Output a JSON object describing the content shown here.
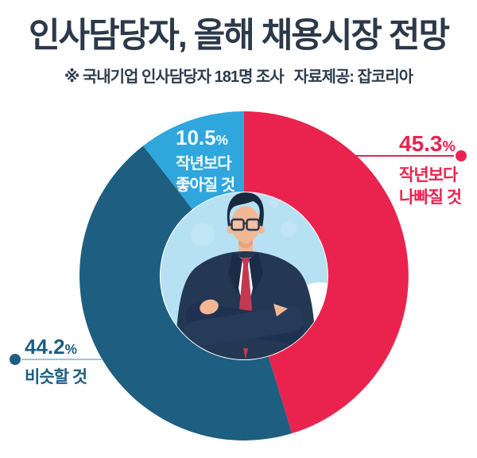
{
  "header": {
    "title": "인사담당자, 올해 채용시장 전망",
    "subtitle_note": "※ 국내기업 인사담당자 181명 조사",
    "subtitle_source": "자료제공: 잡코리아"
  },
  "colors": {
    "title_text": "#2b3949",
    "worse_red": "#ea234e",
    "similar_teal": "#1e5e80",
    "better_blue": "#2fa7dd",
    "leader_line_left": "#a3c2d3",
    "leader_line_right": "#ea234e",
    "center_bg": "#b6e1f2",
    "cloud_white": "#ffffff",
    "on_slice_text": "#f4fbff"
  },
  "chart_data": {
    "type": "pie",
    "subtype": "donut",
    "title": "인사담당자, 올해 채용시장 전망",
    "note": "※ 국내기업 인사담당자 181명 조사",
    "source": "자료제공: 잡코리아",
    "unit": "%",
    "start_angle_deg": 0,
    "direction": "clockwise",
    "inner_radius_ratio": 0.51,
    "center_illustration": "businessman-arms-crossed",
    "segments": [
      {
        "label": "작년보다 나빠질 것",
        "value": 45.3,
        "color": "#ea234e",
        "label_lines": [
          "작년보다",
          "나빠질 것"
        ],
        "label_position": "outside-right"
      },
      {
        "label": "비슷할 것",
        "value": 44.2,
        "color": "#1e5e80",
        "label_lines": [
          "비슷할 것"
        ],
        "label_position": "outside-left"
      },
      {
        "label": "작년보다 좋아질 것",
        "value": 10.5,
        "color": "#2fa7dd",
        "label_lines": [
          "작년보다",
          "좋아질 것"
        ],
        "label_position": "on-slice"
      }
    ]
  }
}
